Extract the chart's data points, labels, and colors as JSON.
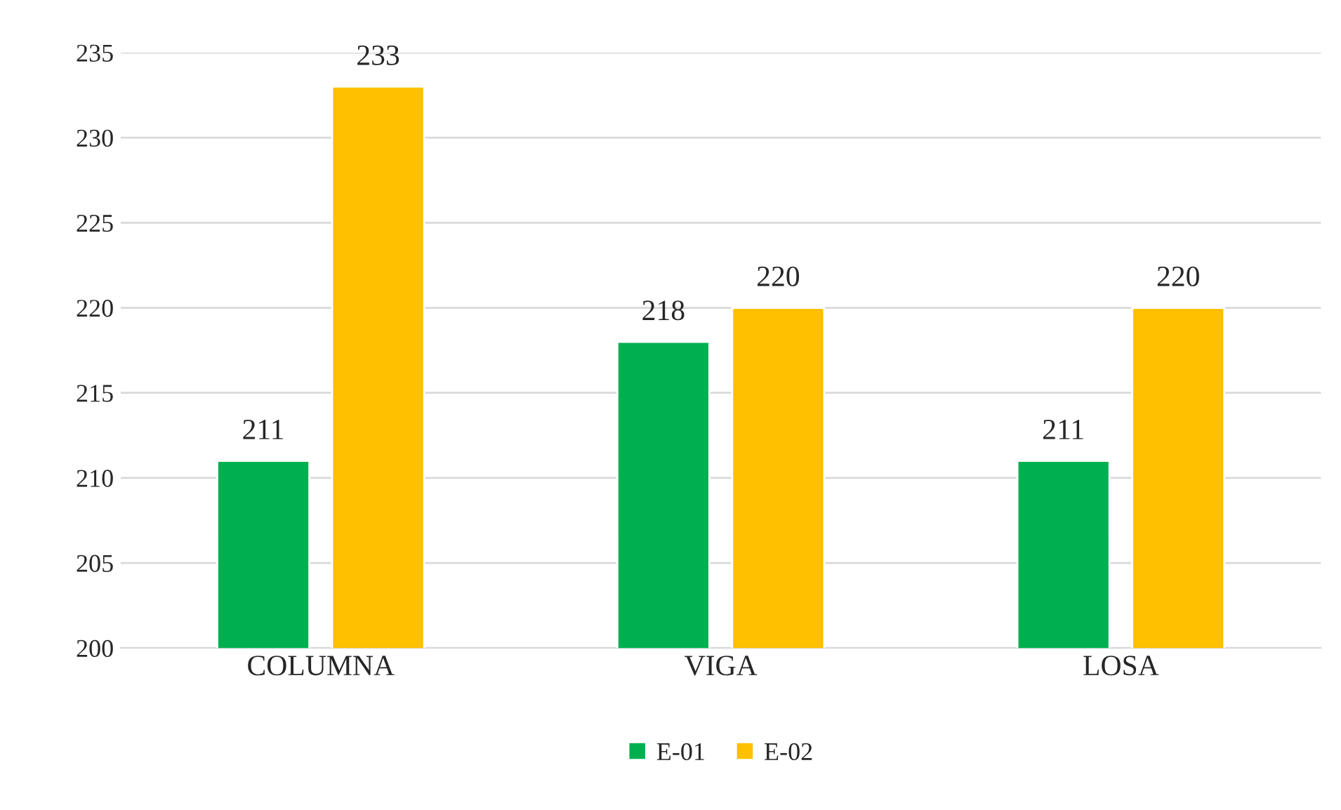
{
  "chart_data": {
    "type": "bar",
    "categories": [
      "COLUMNA",
      "VIGA",
      "LOSA"
    ],
    "series": [
      {
        "name": "E-01",
        "color": "#00b050",
        "values": [
          211,
          218,
          211
        ]
      },
      {
        "name": "E-02",
        "color": "#ffc000",
        "values": [
          233,
          220,
          220
        ]
      }
    ],
    "ylim": [
      200,
      235
    ],
    "yticks": [
      200,
      205,
      210,
      215,
      220,
      225,
      230,
      235
    ],
    "grid": "y",
    "legend": "bottom",
    "data_labels": true
  }
}
